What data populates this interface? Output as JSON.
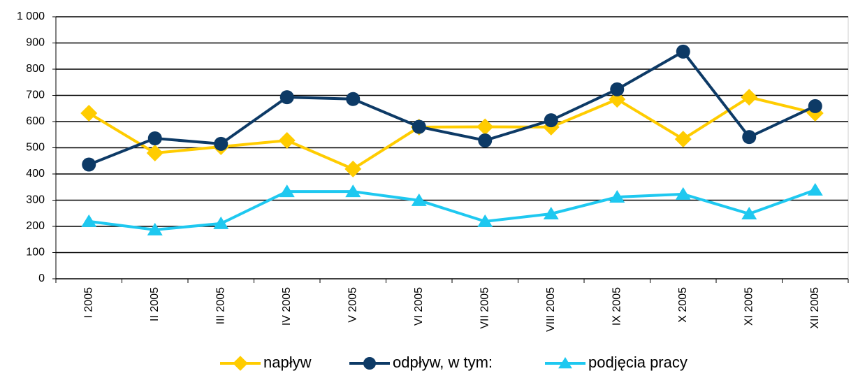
{
  "chart_data": {
    "type": "line",
    "categories": [
      "I 2005",
      "II 2005",
      "III 2005",
      "IV 2005",
      "V 2005",
      "VI 2005",
      "VII 2005",
      "VIII 2005",
      "IX 2005",
      "X 2005",
      "XI 2005",
      "XII 2005"
    ],
    "series": [
      {
        "name": "napływ",
        "color": "#ffcc00",
        "marker": "diamond",
        "values": [
          632,
          480,
          504,
          528,
          419,
          579,
          580,
          579,
          685,
          533,
          693,
          632
        ]
      },
      {
        "name": "odpływ, w tym:",
        "color": "#0d3a66",
        "marker": "circle",
        "values": [
          436,
          536,
          515,
          693,
          686,
          580,
          528,
          605,
          723,
          867,
          541,
          659
        ]
      },
      {
        "name": "podjęcia pracy",
        "color": "#1ec8f0",
        "marker": "triangle",
        "values": [
          219,
          187,
          211,
          333,
          333,
          299,
          219,
          248,
          312,
          323,
          248,
          339
        ]
      }
    ],
    "ylim": [
      0,
      1000
    ],
    "yticks": [
      0,
      100,
      200,
      300,
      400,
      500,
      600,
      700,
      800,
      900,
      {
        "value": 1000,
        "label": "1 000"
      }
    ],
    "grid": true,
    "legend": "bottom"
  }
}
